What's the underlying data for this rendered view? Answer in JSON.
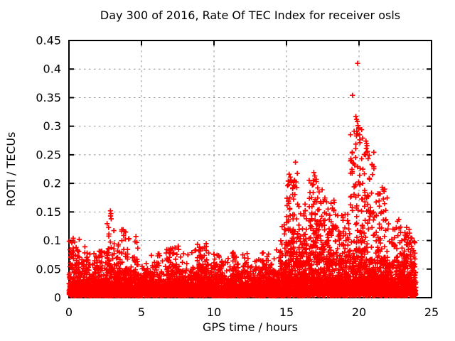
{
  "chart_data": {
    "type": "scatter",
    "title": "Day 300 of 2016, Rate Of TEC Index for receiver osls",
    "xlabel": "GPS time / hours",
    "ylabel": "ROTI / TECUs",
    "marker": "plus",
    "marker_color": "#ff0000",
    "text_color": "#000000",
    "border_color": "#000000",
    "grid": {
      "show": true,
      "style": "dashed",
      "color": "#909090"
    },
    "legend": "none",
    "xlim": [
      0,
      25
    ],
    "ylim": [
      0,
      0.45
    ],
    "xticks": {
      "values": [
        0,
        5,
        10,
        15,
        20,
        25
      ],
      "labels": [
        "0",
        "5",
        "10",
        "15",
        "20",
        "25"
      ]
    },
    "yticks": {
      "values": [
        0,
        0.05,
        0.1,
        0.15,
        0.2,
        0.25,
        0.3,
        0.35,
        0.4,
        0.45
      ],
      "labels": [
        "0",
        "0.05",
        "0.1",
        "0.15",
        "0.2",
        "0.25",
        "0.3",
        "0.35",
        "0.4",
        "0.45"
      ]
    },
    "data_time_range_hours": [
      0,
      23.92
    ],
    "summary": "Dense band of ROTI 0-0.05 TECU all day; moderate spikes to 0.10-0.15 in hours 0-5; quiet hours 5-14.5; strong activity hours 15-24 with clusters at 0.18-0.32 and maximum 0.41 near hour 19.9.",
    "baseline_band": {
      "y_min": 0.003,
      "shape": "exponential",
      "tail_clamp_factor": 1.55,
      "exp_divisor": 3.2
    },
    "band_top_profile": [
      [
        0,
        0.065
      ],
      [
        0.5,
        0.06
      ],
      [
        1,
        0.052
      ],
      [
        1.5,
        0.05
      ],
      [
        2,
        0.052
      ],
      [
        2.5,
        0.055
      ],
      [
        3,
        0.058
      ],
      [
        3.5,
        0.052
      ],
      [
        4,
        0.05
      ],
      [
        4.5,
        0.052
      ],
      [
        5,
        0.045
      ],
      [
        5.5,
        0.048
      ],
      [
        6,
        0.05
      ],
      [
        6.5,
        0.052
      ],
      [
        7,
        0.058
      ],
      [
        7.5,
        0.055
      ],
      [
        8,
        0.05
      ],
      [
        8.5,
        0.052
      ],
      [
        9,
        0.058
      ],
      [
        9.5,
        0.052
      ],
      [
        10,
        0.05
      ],
      [
        10.5,
        0.048
      ],
      [
        11,
        0.045
      ],
      [
        11.5,
        0.05
      ],
      [
        12,
        0.052
      ],
      [
        12.5,
        0.05
      ],
      [
        13,
        0.05
      ],
      [
        13.5,
        0.052
      ],
      [
        14,
        0.05
      ],
      [
        14.5,
        0.058
      ],
      [
        15,
        0.07
      ],
      [
        15.5,
        0.078
      ],
      [
        16,
        0.068
      ],
      [
        16.5,
        0.078
      ],
      [
        17,
        0.085
      ],
      [
        17.5,
        0.08
      ],
      [
        18,
        0.072
      ],
      [
        18.5,
        0.07
      ],
      [
        19,
        0.075
      ],
      [
        19.5,
        0.082
      ],
      [
        20,
        0.085
      ],
      [
        20.5,
        0.08
      ],
      [
        21,
        0.075
      ],
      [
        21.5,
        0.07
      ],
      [
        22,
        0.065
      ],
      [
        22.5,
        0.06
      ],
      [
        23,
        0.065
      ],
      [
        23.5,
        0.07
      ],
      [
        23.92,
        0.062
      ]
    ],
    "spike_clusters": [
      [
        0.05,
        0.75,
        0.105,
        28
      ],
      [
        0.95,
        1.35,
        0.09,
        16
      ],
      [
        1.6,
        2.3,
        0.085,
        20
      ],
      [
        2.6,
        3.15,
        0.135,
        26
      ],
      [
        3.3,
        3.55,
        0.102,
        10
      ],
      [
        3.6,
        4.15,
        0.12,
        28
      ],
      [
        4.5,
        4.8,
        0.107,
        12
      ],
      [
        5.2,
        5.9,
        0.075,
        14
      ],
      [
        6.7,
        7.6,
        0.095,
        26
      ],
      [
        8.8,
        9.5,
        0.095,
        22
      ],
      [
        9.9,
        10.6,
        0.072,
        12
      ],
      [
        11.2,
        11.5,
        0.08,
        6
      ],
      [
        11.9,
        12.4,
        0.07,
        10
      ],
      [
        13.2,
        14.2,
        0.078,
        16
      ],
      [
        14.55,
        15.0,
        0.13,
        24
      ],
      [
        15.0,
        15.55,
        0.205,
        55
      ],
      [
        15.5,
        15.8,
        0.22,
        20
      ],
      [
        15.8,
        16.45,
        0.165,
        45
      ],
      [
        16.5,
        17.5,
        0.21,
        80
      ],
      [
        17.5,
        18.3,
        0.175,
        50
      ],
      [
        18.3,
        19.35,
        0.155,
        50
      ],
      [
        19.4,
        20.3,
        0.3,
        70
      ],
      [
        20.3,
        21.05,
        0.255,
        50
      ],
      [
        21.15,
        22.0,
        0.185,
        50
      ],
      [
        22.0,
        22.9,
        0.14,
        35
      ],
      [
        22.9,
        23.5,
        0.125,
        28
      ],
      [
        23.5,
        23.92,
        0.11,
        20
      ]
    ],
    "peak_points": [
      [
        19.9,
        0.41
      ],
      [
        19.55,
        0.354
      ],
      [
        19.78,
        0.317
      ],
      [
        19.83,
        0.312
      ],
      [
        19.88,
        0.308
      ],
      [
        19.93,
        0.301
      ],
      [
        19.97,
        0.296
      ],
      [
        19.85,
        0.291
      ],
      [
        19.91,
        0.287
      ],
      [
        20.48,
        0.274
      ],
      [
        20.52,
        0.27
      ],
      [
        20.55,
        0.266
      ],
      [
        20.5,
        0.261
      ],
      [
        20.58,
        0.256
      ],
      [
        20.44,
        0.25
      ],
      [
        20.18,
        0.243
      ],
      [
        19.47,
        0.24
      ],
      [
        19.58,
        0.236
      ],
      [
        19.7,
        0.232
      ],
      [
        19.9,
        0.229
      ],
      [
        20.08,
        0.226
      ],
      [
        15.62,
        0.237
      ],
      [
        16.88,
        0.219
      ],
      [
        16.95,
        0.213
      ],
      [
        17.05,
        0.207
      ],
      [
        16.78,
        0.197
      ],
      [
        17.15,
        0.192
      ],
      [
        16.62,
        0.184
      ],
      [
        15.18,
        0.216
      ],
      [
        15.26,
        0.211
      ],
      [
        15.31,
        0.206
      ],
      [
        15.14,
        0.198
      ],
      [
        21.6,
        0.193
      ],
      [
        21.66,
        0.189
      ],
      [
        21.72,
        0.186
      ],
      [
        21.77,
        0.19
      ],
      [
        2.86,
        0.152
      ],
      [
        2.89,
        0.147
      ],
      [
        2.87,
        0.143
      ],
      [
        2.91,
        0.138
      ],
      [
        23.28,
        0.123
      ],
      [
        23.33,
        0.112
      ],
      [
        11.32,
        0.079
      ],
      [
        4.62,
        0.107
      ]
    ],
    "generation": {
      "seed": 2016300,
      "step_hours": 0.012,
      "points_per_step": 3,
      "streak_column_width_hours": 0.1,
      "streak_sigma_hours": 0.015,
      "streak_power": 1.5
    }
  }
}
